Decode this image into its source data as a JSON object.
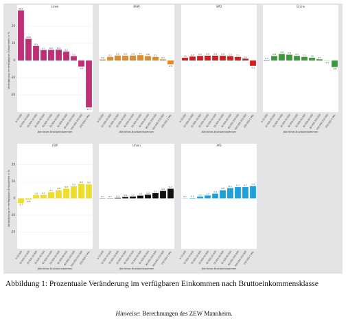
{
  "chart_data": [
    {
      "type": "bar",
      "title": "Linke",
      "color": "#be3075",
      "categories": [
        "0-10.000",
        "10.000-20.000",
        "20.000-30.000",
        "30.000-40.000",
        "40.000-50.000",
        "50.000-60.000",
        "60.000-80.000",
        "80.000-100.000",
        "100.000-250.000",
        "250.000-1 Mio."
      ],
      "values": [
        29.1,
        12.6,
        8.5,
        6.1,
        6.2,
        6.3,
        5.2,
        2.5,
        -3.5,
        -27.3
      ],
      "ylim": [
        -30,
        30
      ],
      "yticks": [
        -20,
        -10,
        0,
        10,
        20
      ],
      "grid": true,
      "xlabel": "Jährliches Bruttoeinkommen",
      "ylabel": "Veränderung im verfügbaren Einkommen in %"
    },
    {
      "type": "bar",
      "title": "BSW",
      "color": "#e08a2c",
      "categories": [
        "0-10.000",
        "10.000-20.000",
        "20.000-30.000",
        "30.000-40.000",
        "40.000-50.000",
        "50.000-60.000",
        "60.000-80.000",
        "80.000-100.000",
        "100.000-250.000",
        "250.000-1 Mio."
      ],
      "values": [
        0.6,
        2.1,
        2.9,
        2.8,
        2.9,
        3.1,
        2.6,
        2.1,
        0.7,
        -2.2
      ],
      "ylim": [
        -30,
        30
      ],
      "xlabel": "Jährliches Bruttoeinkommen"
    },
    {
      "type": "bar",
      "title": "SPD",
      "color": "#d11f1f",
      "categories": [
        "0-10.000",
        "10.000-20.000",
        "20.000-30.000",
        "30.000-40.000",
        "40.000-50.000",
        "50.000-60.000",
        "60.000-80.000",
        "80.000-100.000",
        "100.000-250.000",
        "250.000-1 Mio."
      ],
      "values": [
        1.6,
        2.3,
        2.7,
        2.8,
        2.8,
        2.8,
        2.5,
        2.1,
        1.1,
        -3.1
      ],
      "ylim": [
        -30,
        30
      ],
      "xlabel": "Jährliches Bruttoeinkommen"
    },
    {
      "type": "bar",
      "title": "Grüne",
      "color": "#3a9a3a",
      "categories": [
        "0-10.000",
        "10.000-20.000",
        "20.000-30.000",
        "30.000-40.000",
        "40.000-50.000",
        "50.000-60.000",
        "60.000-80.000",
        "80.000-100.000",
        "100.000-250.000",
        "250.000-1 Mio."
      ],
      "values": [
        0.3,
        2.6,
        3.8,
        3.4,
        2.7,
        2.1,
        1.6,
        0.7,
        -0.1,
        -3.8
      ],
      "ylim": [
        -30,
        30
      ],
      "xlabel": "Jährliches Bruttoeinkommen"
    },
    {
      "type": "bar",
      "title": "FDP",
      "color": "#f0dc2a",
      "categories": [
        "0-10.000",
        "10.000-20.000",
        "20.000-30.000",
        "30.000-40.000",
        "40.000-50.000",
        "50.000-60.000",
        "60.000-80.000",
        "80.000-100.000",
        "100.000-250.000",
        "250.000-1 Mio."
      ],
      "values": [
        -2.7,
        -0.8,
        1.8,
        2.1,
        3.7,
        4.8,
        5.8,
        7.2,
        8.6,
        8.3
      ],
      "ylim": [
        -30,
        30
      ],
      "yticks": [
        -20,
        -10,
        0,
        10,
        20
      ],
      "grid": true,
      "xlabel": "Jährliches Bruttoeinkommen",
      "ylabel": "Veränderung im verfügbaren Einkommen in %"
    },
    {
      "type": "bar",
      "title": "Union",
      "color": "#111111",
      "categories": [
        "0-10.000",
        "10.000-20.000",
        "20.000-30.000",
        "30.000-40.000",
        "40.000-50.000",
        "50.000-60.000",
        "60.000-80.000",
        "80.000-100.000",
        "100.000-250.000",
        "250.000-1 Mio."
      ],
      "values": [
        0.1,
        0.1,
        0.3,
        0.8,
        1.1,
        1.6,
        2.2,
        3.1,
        4.4,
        5.7
      ],
      "ylim": [
        -30,
        30
      ],
      "xlabel": "Jährliches Bruttoeinkommen"
    },
    {
      "type": "bar",
      "title": "AfD",
      "color": "#1ea0d8",
      "categories": [
        "0-10.000",
        "10.000-20.000",
        "20.000-30.000",
        "30.000-40.000",
        "40.000-50.000",
        "50.000-60.000",
        "60.000-80.000",
        "80.000-100.000",
        "100.000-250.000",
        "250.000-1 Mio."
      ],
      "values": [
        0.1,
        0.2,
        1.1,
        1.7,
        2.8,
        4.8,
        6.1,
        6.7,
        6.7,
        7.3
      ],
      "ylim": [
        -30,
        30
      ],
      "xlabel": "Jährliches Bruttoeinkommen"
    }
  ],
  "caption": {
    "label": "Abbildung 1:",
    "text": "Prozentuale Veränderung im verfügbaren Einkommen nach Bruttoeinkommensklasse"
  },
  "note": {
    "label": "Hinweise:",
    "text": "Berechnungen des ZEW Mannheim."
  }
}
